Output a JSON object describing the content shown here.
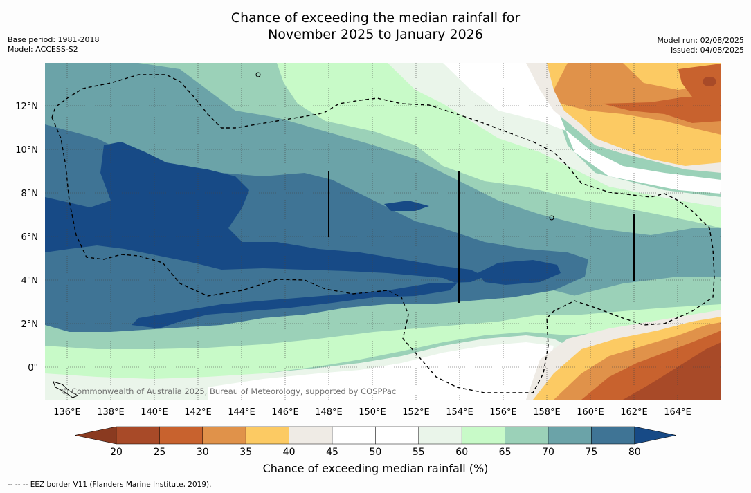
{
  "title_line1": "Chance of exceeding the median rainfall for",
  "title_line2": "November 2025 to January 2026",
  "meta_left": [
    "Base period: 1981-2018",
    "Model: ACCESS-S2"
  ],
  "meta_right": [
    "Model run: 02/08/2025",
    "Issued: 04/08/2025"
  ],
  "copyright": "© Commonwealth of Australia 2025, Bureau of Meteorology, supported by COSPPac",
  "lon_labels": [
    "136°E",
    "138°E",
    "140°E",
    "142°E",
    "144°E",
    "146°E",
    "148°E",
    "150°E",
    "152°E",
    "154°E",
    "156°E",
    "158°E",
    "160°E",
    "162°E",
    "164°E"
  ],
  "lat_labels": [
    "12°N",
    "10°N",
    "8°N",
    "6°N",
    "4°N",
    "2°N",
    "0°"
  ],
  "colorbar": {
    "title": "Chance of exceeding median rainfall (%)",
    "ticks": [
      "20",
      "25",
      "30",
      "35",
      "40",
      "45",
      "50",
      "55",
      "60",
      "65",
      "70",
      "75",
      "80"
    ],
    "colors": [
      "#a84a28",
      "#c8622e",
      "#e0924a",
      "#fcca63",
      "#efebe5",
      "#ffffff",
      "#ffffff",
      "#eaf5ea",
      "#c8fac8",
      "#9bd1b8",
      "#6ba3a8",
      "#3f7495"
    ],
    "under_color": "#8a3a20",
    "over_color": "#174a86"
  },
  "footnote": "-- -- -- EEZ border V11 (Flanders Marine Institute, 2019)."
}
